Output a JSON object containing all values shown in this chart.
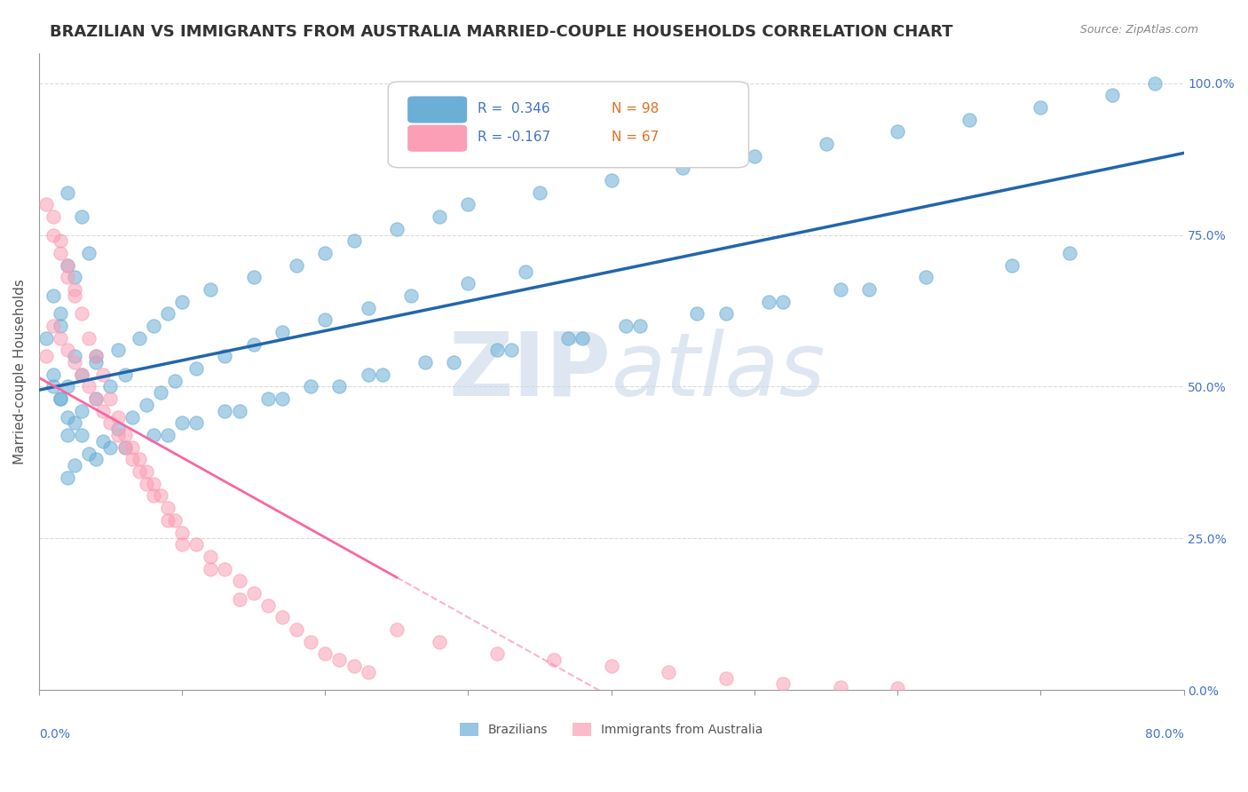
{
  "title": "BRAZILIAN VS IMMIGRANTS FROM AUSTRALIA MARRIED-COUPLE HOUSEHOLDS CORRELATION CHART",
  "source": "Source: ZipAtlas.com",
  "ylabel": "Married-couple Households",
  "xlim": [
    0.0,
    0.8
  ],
  "ylim": [
    0.0,
    1.05
  ],
  "yticks": [
    0.0,
    0.25,
    0.5,
    0.75,
    1.0
  ],
  "ytick_labels": [
    "0.0%",
    "25.0%",
    "50.0%",
    "75.0%",
    "100.0%"
  ],
  "blue_R": 0.346,
  "blue_N": 98,
  "pink_R": -0.167,
  "pink_N": 67,
  "blue_color": "#6baed6",
  "pink_color": "#fa9fb5",
  "blue_line_color": "#2166ac",
  "pink_line_color": "#f768a1",
  "legend_blue_label": "Brazilians",
  "legend_pink_label": "Immigrants from Australia",
  "watermark_zip": "ZIP",
  "watermark_atlas": "atlas",
  "title_fontsize": 13,
  "axis_label_fontsize": 11,
  "tick_fontsize": 10,
  "background_color": "#ffffff",
  "grid_color": "#cccccc",
  "blue_points_x": [
    0.02,
    0.03,
    0.02,
    0.01,
    0.015,
    0.025,
    0.035,
    0.04,
    0.02,
    0.015,
    0.01,
    0.005,
    0.02,
    0.03,
    0.025,
    0.015,
    0.04,
    0.05,
    0.06,
    0.03,
    0.025,
    0.02,
    0.015,
    0.01,
    0.03,
    0.04,
    0.055,
    0.07,
    0.08,
    0.09,
    0.1,
    0.12,
    0.15,
    0.18,
    0.2,
    0.22,
    0.25,
    0.28,
    0.3,
    0.35,
    0.4,
    0.45,
    0.5,
    0.55,
    0.6,
    0.65,
    0.7,
    0.75,
    0.05,
    0.08,
    0.1,
    0.13,
    0.16,
    0.19,
    0.23,
    0.27,
    0.32,
    0.38,
    0.42,
    0.48,
    0.52,
    0.58,
    0.62,
    0.68,
    0.72,
    0.04,
    0.06,
    0.09,
    0.11,
    0.14,
    0.17,
    0.21,
    0.24,
    0.29,
    0.33,
    0.37,
    0.41,
    0.46,
    0.51,
    0.56,
    0.02,
    0.025,
    0.035,
    0.045,
    0.055,
    0.065,
    0.075,
    0.085,
    0.095,
    0.11,
    0.13,
    0.15,
    0.17,
    0.2,
    0.23,
    0.26,
    0.3,
    0.34
  ],
  "blue_points_y": [
    0.82,
    0.78,
    0.7,
    0.65,
    0.6,
    0.68,
    0.72,
    0.55,
    0.5,
    0.48,
    0.52,
    0.58,
    0.45,
    0.42,
    0.55,
    0.62,
    0.48,
    0.5,
    0.52,
    0.46,
    0.44,
    0.42,
    0.48,
    0.5,
    0.52,
    0.54,
    0.56,
    0.58,
    0.6,
    0.62,
    0.64,
    0.66,
    0.68,
    0.7,
    0.72,
    0.74,
    0.76,
    0.78,
    0.8,
    0.82,
    0.84,
    0.86,
    0.88,
    0.9,
    0.92,
    0.94,
    0.96,
    0.98,
    0.4,
    0.42,
    0.44,
    0.46,
    0.48,
    0.5,
    0.52,
    0.54,
    0.56,
    0.58,
    0.6,
    0.62,
    0.64,
    0.66,
    0.68,
    0.7,
    0.72,
    0.38,
    0.4,
    0.42,
    0.44,
    0.46,
    0.48,
    0.5,
    0.52,
    0.54,
    0.56,
    0.58,
    0.6,
    0.62,
    0.64,
    0.66,
    0.35,
    0.37,
    0.39,
    0.41,
    0.43,
    0.45,
    0.47,
    0.49,
    0.51,
    0.53,
    0.55,
    0.57,
    0.59,
    0.61,
    0.63,
    0.65,
    0.67,
    0.69
  ],
  "blue_outlier_x": [
    0.78
  ],
  "blue_outlier_y": [
    1.0
  ],
  "pink_points_x": [
    0.005,
    0.01,
    0.015,
    0.02,
    0.025,
    0.01,
    0.015,
    0.02,
    0.025,
    0.03,
    0.035,
    0.04,
    0.045,
    0.05,
    0.055,
    0.06,
    0.065,
    0.07,
    0.075,
    0.08,
    0.085,
    0.09,
    0.095,
    0.1,
    0.11,
    0.12,
    0.13,
    0.14,
    0.15,
    0.16,
    0.17,
    0.18,
    0.19,
    0.2,
    0.21,
    0.22,
    0.23,
    0.25,
    0.28,
    0.32,
    0.36,
    0.4,
    0.44,
    0.48,
    0.52,
    0.56,
    0.6,
    0.005,
    0.01,
    0.015,
    0.02,
    0.025,
    0.03,
    0.035,
    0.04,
    0.045,
    0.05,
    0.055,
    0.06,
    0.065,
    0.07,
    0.075,
    0.08,
    0.09,
    0.1,
    0.12,
    0.14
  ],
  "pink_points_y": [
    0.8,
    0.75,
    0.72,
    0.68,
    0.65,
    0.78,
    0.74,
    0.7,
    0.66,
    0.62,
    0.58,
    0.55,
    0.52,
    0.48,
    0.45,
    0.42,
    0.4,
    0.38,
    0.36,
    0.34,
    0.32,
    0.3,
    0.28,
    0.26,
    0.24,
    0.22,
    0.2,
    0.18,
    0.16,
    0.14,
    0.12,
    0.1,
    0.08,
    0.06,
    0.05,
    0.04,
    0.03,
    0.1,
    0.08,
    0.06,
    0.05,
    0.04,
    0.03,
    0.02,
    0.01,
    0.005,
    0.003,
    0.55,
    0.6,
    0.58,
    0.56,
    0.54,
    0.52,
    0.5,
    0.48,
    0.46,
    0.44,
    0.42,
    0.4,
    0.38,
    0.36,
    0.34,
    0.32,
    0.28,
    0.24,
    0.2,
    0.15
  ]
}
